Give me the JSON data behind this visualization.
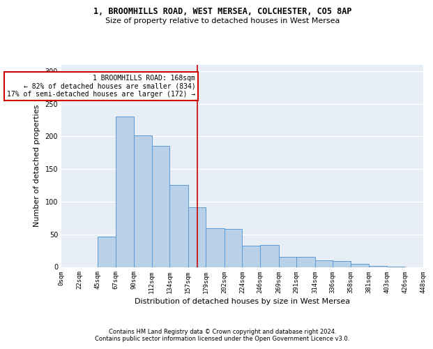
{
  "title_line1": "1, BROOMHILLS ROAD, WEST MERSEA, COLCHESTER, CO5 8AP",
  "title_line2": "Size of property relative to detached houses in West Mersea",
  "xlabel": "Distribution of detached houses by size in West Mersea",
  "ylabel": "Number of detached properties",
  "footer_line1": "Contains HM Land Registry data © Crown copyright and database right 2024.",
  "footer_line2": "Contains public sector information licensed under the Open Government Licence v3.0.",
  "bin_edges": [
    0,
    22,
    45,
    67,
    90,
    112,
    134,
    157,
    179,
    202,
    224,
    246,
    269,
    291,
    314,
    336,
    358,
    381,
    403,
    426,
    448
  ],
  "bar_heights": [
    0,
    0,
    47,
    230,
    202,
    185,
    126,
    91,
    59,
    58,
    33,
    34,
    16,
    16,
    10,
    9,
    5,
    2,
    1,
    0
  ],
  "bar_color": "#b8d0e8",
  "bar_edge_color": "#5b9bd5",
  "property_size": 168,
  "annotation_text_line1": "1 BROOMHILLS ROAD: 168sqm",
  "annotation_text_line2": "← 82% of detached houses are smaller (834)",
  "annotation_text_line3": "17% of semi-detached houses are larger (172) →",
  "vline_color": "#cc0000",
  "annotation_box_color": "#ffffff",
  "annotation_box_edge_color": "#cc0000",
  "ylim": [
    0,
    310
  ],
  "xlim": [
    0,
    448
  ],
  "yticks": [
    0,
    50,
    100,
    150,
    200,
    250,
    300
  ],
  "background_color": "#e8eef6",
  "grid_color": "#ffffff",
  "title1_fontsize": 8.5,
  "title2_fontsize": 8,
  "ylabel_fontsize": 8,
  "xlabel_fontsize": 8,
  "footer_fontsize": 6,
  "tick_fontsize": 6.5,
  "ann_fontsize": 7
}
